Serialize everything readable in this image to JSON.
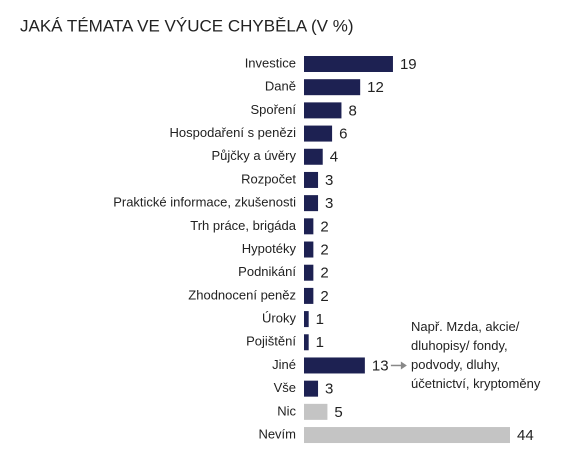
{
  "chart_data": {
    "type": "bar",
    "orientation": "horizontal",
    "title": "JAKÁ TÉMATA VE VÝUCE CHYBĚLA (V %)",
    "categories": [
      "Investice",
      "Daně",
      "Spoření",
      "Hospodaření s penězi",
      "Půjčky a úvěry",
      "Rozpočet",
      "Praktické informace, zkušenosti",
      "Trh práce, brigáda",
      "Hypotéky",
      "Podnikání",
      "Zhodnocení peněz",
      "Úroky",
      "Pojištění",
      "Jiné",
      "Vše",
      "Nic",
      "Nevím"
    ],
    "values": [
      19,
      12,
      8,
      6,
      4,
      3,
      3,
      2,
      2,
      2,
      2,
      1,
      1,
      13,
      3,
      5,
      44
    ],
    "colors": [
      "#1d2152",
      "#1d2152",
      "#1d2152",
      "#1d2152",
      "#1d2152",
      "#1d2152",
      "#1d2152",
      "#1d2152",
      "#1d2152",
      "#1d2152",
      "#1d2152",
      "#1d2152",
      "#1d2152",
      "#1d2152",
      "#1d2152",
      "#c4c4c4",
      "#c4c4c4"
    ],
    "annotation": {
      "category_index": 13,
      "lines": [
        "Např. Mzda, akcie/",
        "dluhopisy/ fondy,",
        "podvody, dluhy,",
        "účetnictví, kryptoměny"
      ]
    }
  }
}
